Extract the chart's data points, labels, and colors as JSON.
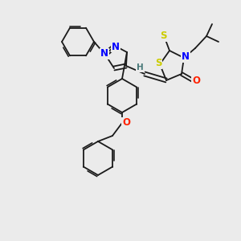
{
  "bg_color": "#ebebeb",
  "bond_color": "#1a1a1a",
  "atom_colors": {
    "N": "#0000ff",
    "O": "#ff2200",
    "S": "#cccc00",
    "H": "#4a7a7a",
    "C": "#1a1a1a"
  },
  "lw": 1.3,
  "font_size_atom": 8.5
}
